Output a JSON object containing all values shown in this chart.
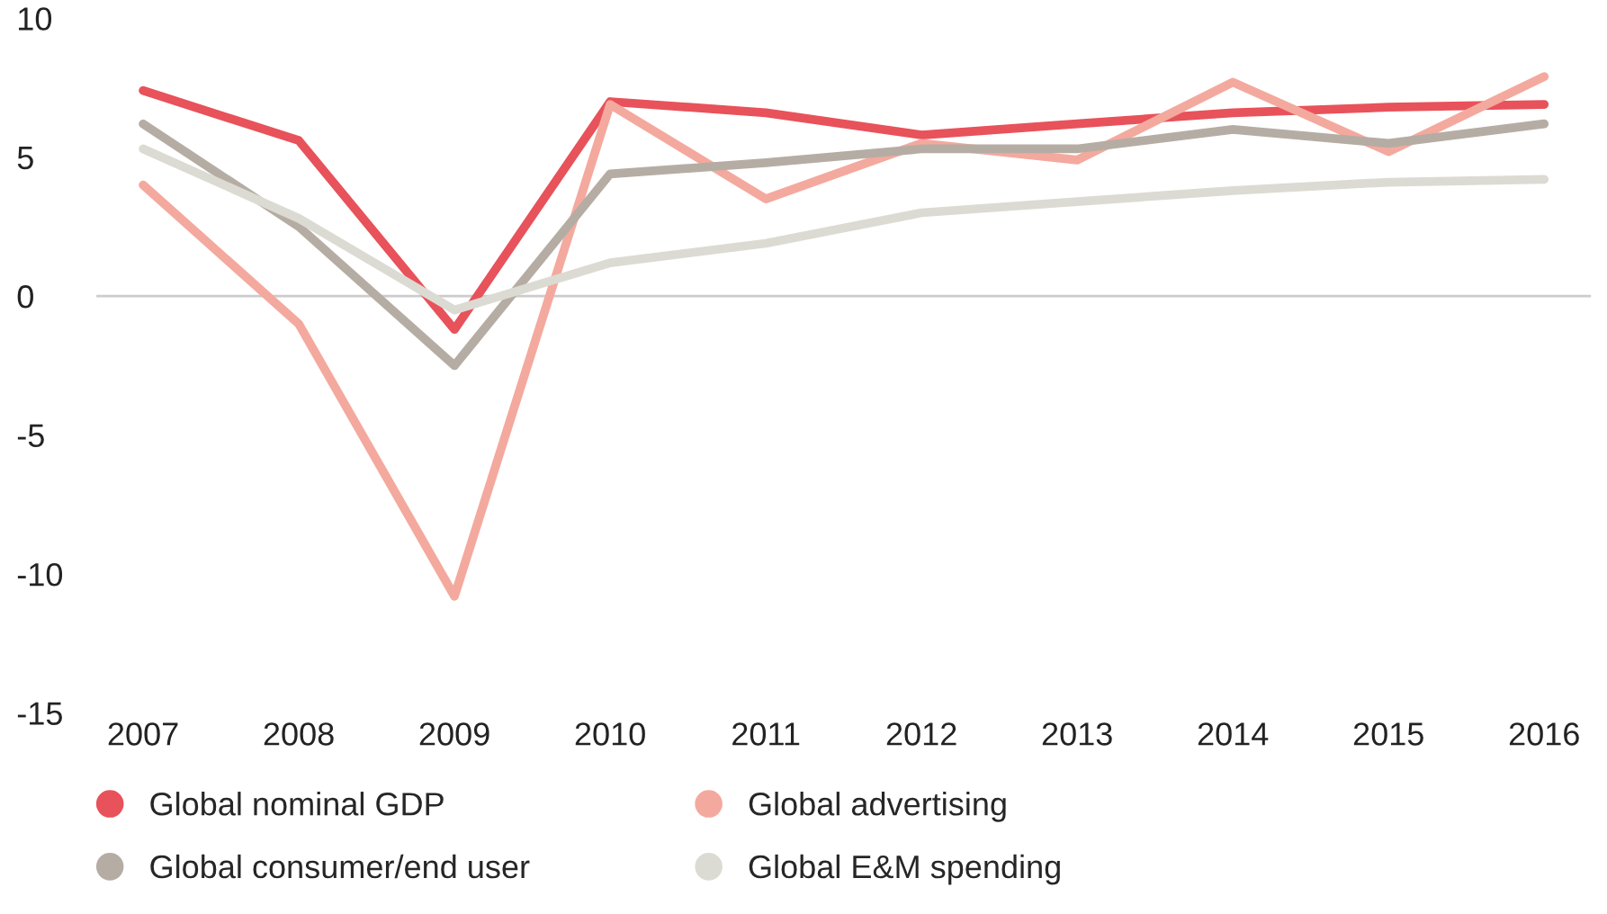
{
  "chart_data": {
    "type": "line",
    "categories": [
      "2007",
      "2008",
      "2009",
      "2010",
      "2011",
      "2012",
      "2013",
      "2014",
      "2015",
      "2016"
    ],
    "series": [
      {
        "name": "Global nominal GDP",
        "color": "#e8525a",
        "values": [
          7.4,
          5.6,
          -1.2,
          7.0,
          6.6,
          5.8,
          6.2,
          6.6,
          6.8,
          6.9
        ]
      },
      {
        "name": "Global advertising",
        "color": "#f4a99e",
        "values": [
          4.0,
          -1.0,
          -10.8,
          6.9,
          3.5,
          5.5,
          4.9,
          7.7,
          5.2,
          7.9
        ]
      },
      {
        "name": "Global consumer/end user",
        "color": "#b5ada4",
        "values": [
          6.2,
          2.5,
          -2.5,
          4.4,
          4.8,
          5.3,
          5.3,
          6.0,
          5.5,
          6.2
        ]
      },
      {
        "name": "Global E&M spending",
        "color": "#dcdbd3",
        "values": [
          5.3,
          2.8,
          -0.5,
          1.2,
          1.9,
          3.0,
          3.4,
          3.8,
          4.1,
          4.2
        ]
      }
    ],
    "ylim": [
      -15,
      10
    ],
    "yticks": [
      -15,
      -10,
      -5,
      0,
      5,
      10
    ],
    "ref_lines": [
      {
        "axis": "y",
        "value": 0,
        "color": "#cccccc"
      }
    ],
    "grid": false,
    "legend": "bottom",
    "marker": "none",
    "line_style": "solid"
  }
}
